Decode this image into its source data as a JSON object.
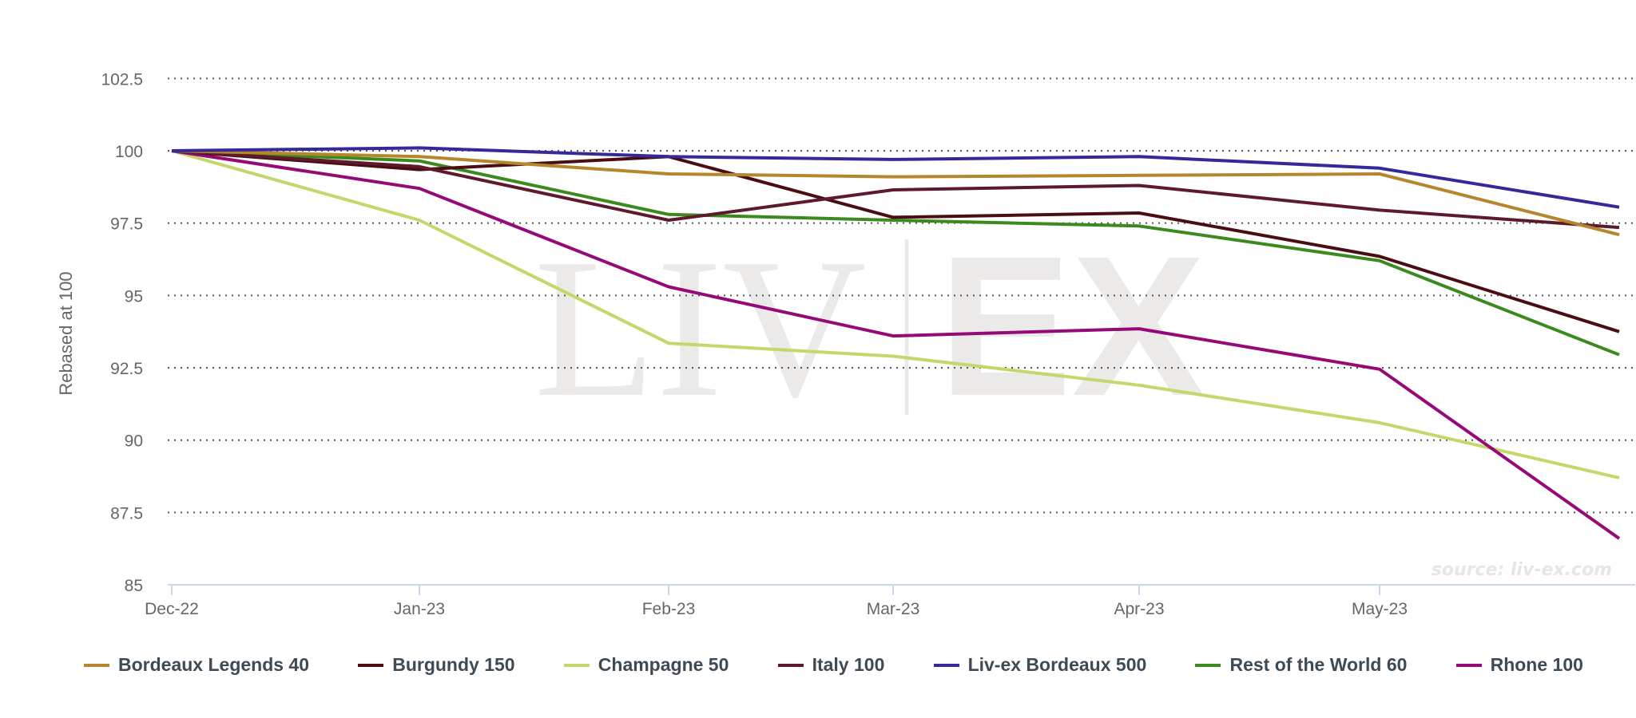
{
  "chart_data": {
    "type": "line",
    "ylabel": "Rebased at 100",
    "ylim": [
      85,
      102.5
    ],
    "y_ticks": [
      "85",
      "87.5",
      "90",
      "92.5",
      "95",
      "97.5",
      "100",
      "102.5"
    ],
    "x_ticks": [
      "Dec-22",
      "Jan-23",
      "Feb-23",
      "Mar-23",
      "Apr-23",
      "May-23"
    ],
    "grid": "horizontal dotted",
    "legend": "bottom",
    "watermark": "LIV|EX",
    "source": "source: liv-ex.com",
    "series": [
      {
        "name": "Bordeaux Legends 40",
        "color": "#b5862b",
        "values": [
          100,
          99.8,
          99.2,
          99.1,
          99.15,
          99.2,
          97.1
        ]
      },
      {
        "name": "Burgundy 150",
        "color": "#4a0d12",
        "values": [
          100,
          99.35,
          99.8,
          97.7,
          97.85,
          96.35,
          93.75
        ]
      },
      {
        "name": "Champagne 50",
        "color": "#c4d76a",
        "values": [
          100,
          97.6,
          93.35,
          92.9,
          91.9,
          90.6,
          88.7
        ]
      },
      {
        "name": "Italy 100",
        "color": "#5e1a2c",
        "values": [
          100,
          99.45,
          97.6,
          98.65,
          98.8,
          97.95,
          97.35
        ]
      },
      {
        "name": "Liv-ex Bordeaux 500",
        "color": "#35299a",
        "values": [
          100,
          100.1,
          99.8,
          99.7,
          99.8,
          99.4,
          98.05
        ]
      },
      {
        "name": "Rest of the World 60",
        "color": "#3a8a1d",
        "values": [
          100,
          99.65,
          97.8,
          97.6,
          97.4,
          96.2,
          92.95
        ]
      },
      {
        "name": "Rhone 100",
        "color": "#960a78",
        "values": [
          100,
          98.7,
          95.3,
          93.6,
          93.85,
          92.45,
          86.6
        ]
      }
    ]
  }
}
